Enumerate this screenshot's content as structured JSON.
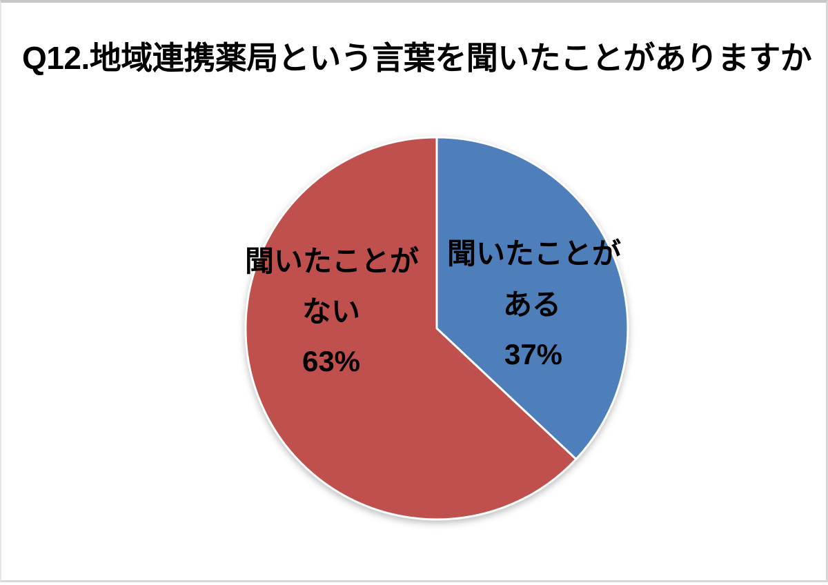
{
  "title": "Q12.地域連携薬局という言葉を聞いたことがありますか",
  "chart_data": {
    "type": "pie",
    "title": "Q12.地域連携薬局という言葉を聞いたことがありますか",
    "categories": [
      "聞いたことがある",
      "聞いたことがない"
    ],
    "values": [
      37,
      63
    ],
    "unit": "%",
    "colors": [
      "#4E7FBA",
      "#C0504D"
    ],
    "start_angle_deg": 0,
    "direction": "clockwise",
    "legend": "none",
    "slices": [
      {
        "category": "聞いたことがある",
        "percent": 37,
        "color": "#4E7FBA",
        "label_lines": [
          "聞いたことが",
          "ある",
          "37%"
        ]
      },
      {
        "category": "聞いたことがない",
        "percent": 63,
        "color": "#C0504D",
        "label_lines": [
          "聞いたことが",
          "ない",
          "63%"
        ]
      }
    ]
  }
}
